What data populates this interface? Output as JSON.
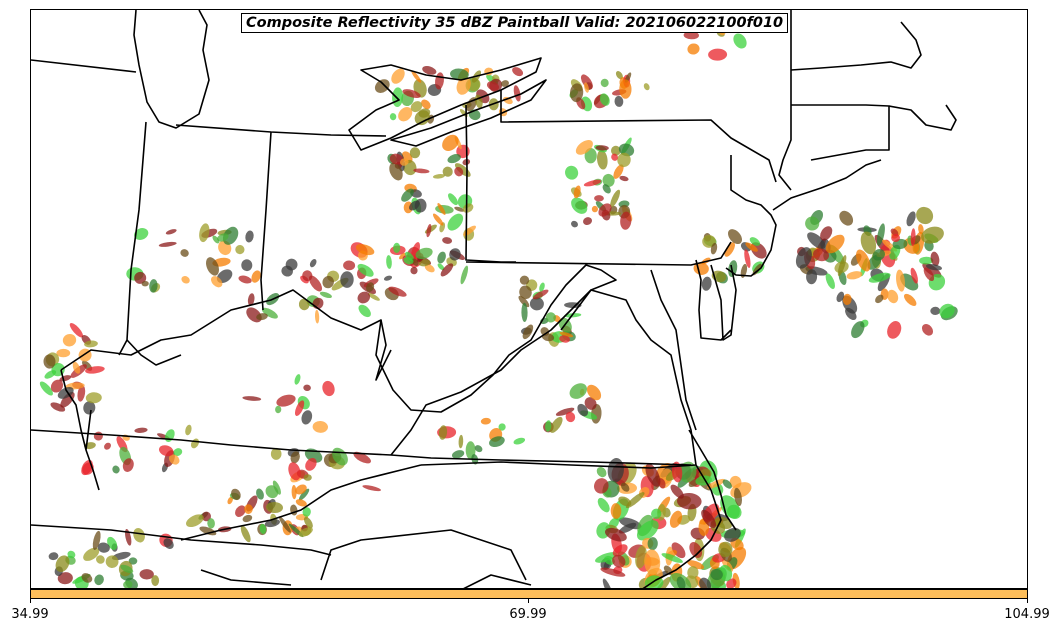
{
  "title": "Composite Reflectivity 35 dBZ Paintball Valid: 202106022100f010",
  "colorbar": {
    "fill_color": "#fdbe5b",
    "ticks": [
      "34.99",
      "69.99",
      "104.99"
    ]
  },
  "member_colors": [
    "#3a3a3a",
    "#8b1a1a",
    "#e8232a",
    "#f57c00",
    "#ff9f2e",
    "#8a8a1a",
    "#9e9e2a",
    "#2e7d32",
    "#4caf3a",
    "#3cd23c",
    "#b22222",
    "#6b4e1a"
  ]
}
